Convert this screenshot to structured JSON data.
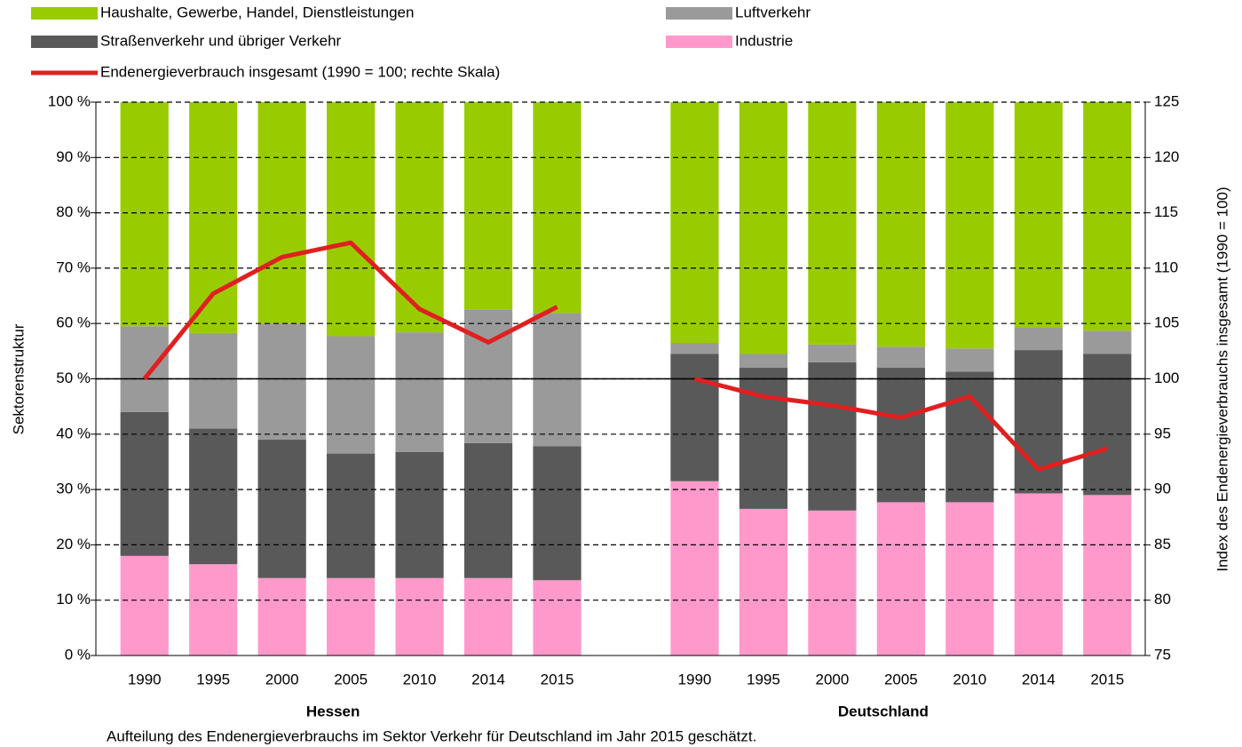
{
  "chart_data": {
    "type": "bar",
    "stacked": true,
    "categories": [
      "1990",
      "1995",
      "2000",
      "2005",
      "2010",
      "2014",
      "2015",
      null,
      "1990",
      "1995",
      "2000",
      "2005",
      "2010",
      "2014",
      "2015"
    ],
    "group_labels": [
      "Hessen",
      "Deutschland"
    ],
    "y_label": "Sektorenstruktur",
    "y2_label": "Index des Endenergieverbrauchs insgesamt (1990 = 100)",
    "footnote": "Aufteilung des Endenergieverbrauchs im Sektor Verkehr für Deutschland im Jahr 2015 geschätzt.",
    "ylim": [
      0,
      100
    ],
    "yticks": [
      {
        "value": 0,
        "label": "0 %"
      },
      {
        "value": 10,
        "label": "10 %"
      },
      {
        "value": 20,
        "label": "20 %"
      },
      {
        "value": 30,
        "label": "30 %"
      },
      {
        "value": 40,
        "label": "40 %"
      },
      {
        "value": 50,
        "label": "50 %"
      },
      {
        "value": 60,
        "label": "60 %"
      },
      {
        "value": 70,
        "label": "70 %"
      },
      {
        "value": 80,
        "label": "80 %"
      },
      {
        "value": 90,
        "label": "90 %"
      },
      {
        "value": 100,
        "label": "100 %"
      }
    ],
    "y2lim": [
      75,
      125
    ],
    "y2ticks": [
      75,
      80,
      85,
      90,
      95,
      100,
      105,
      110,
      115,
      120,
      125
    ],
    "grid": true,
    "series": [
      {
        "name": "Industrie",
        "color": "#ff99cc",
        "values": [
          18,
          16.5,
          14,
          14,
          14,
          14,
          13.6,
          null,
          31.5,
          26.5,
          26.2,
          27.7,
          27.7,
          29.3,
          29
        ]
      },
      {
        "name": "Straßenverkehr und übriger Verkehr",
        "color": "#595959",
        "values": [
          26,
          24.5,
          25,
          22.5,
          22.8,
          24.4,
          24.2,
          null,
          23,
          25.5,
          26.8,
          24.3,
          23.6,
          25.9,
          25.5
        ]
      },
      {
        "name": "Luftverkehr",
        "color": "#9a9a9a",
        "values": [
          15.5,
          17.3,
          21,
          21.2,
          21.6,
          24.1,
          24.1,
          null,
          2,
          2.5,
          3.2,
          3.8,
          4.2,
          4.1,
          4.2
        ]
      },
      {
        "name": "Haushalte, Gewerbe, Handel, Dienstleistungen",
        "color": "#99cc00",
        "values": [
          40.5,
          41.7,
          40,
          42.3,
          41.6,
          37.5,
          38.1,
          null,
          43.5,
          45.5,
          43.8,
          44.2,
          44.5,
          40.7,
          41.3
        ]
      },
      {
        "name": "Endenergieverbrauch insgesamt (1990 = 100; rechte Skala)",
        "color": "#e02020",
        "type": "line",
        "axis": "y2",
        "values": [
          100,
          107.7,
          111,
          112.3,
          106.3,
          103.3,
          106.5,
          null,
          100,
          98.4,
          97.6,
          96.5,
          98.4,
          91.8,
          93.7
        ]
      }
    ]
  }
}
